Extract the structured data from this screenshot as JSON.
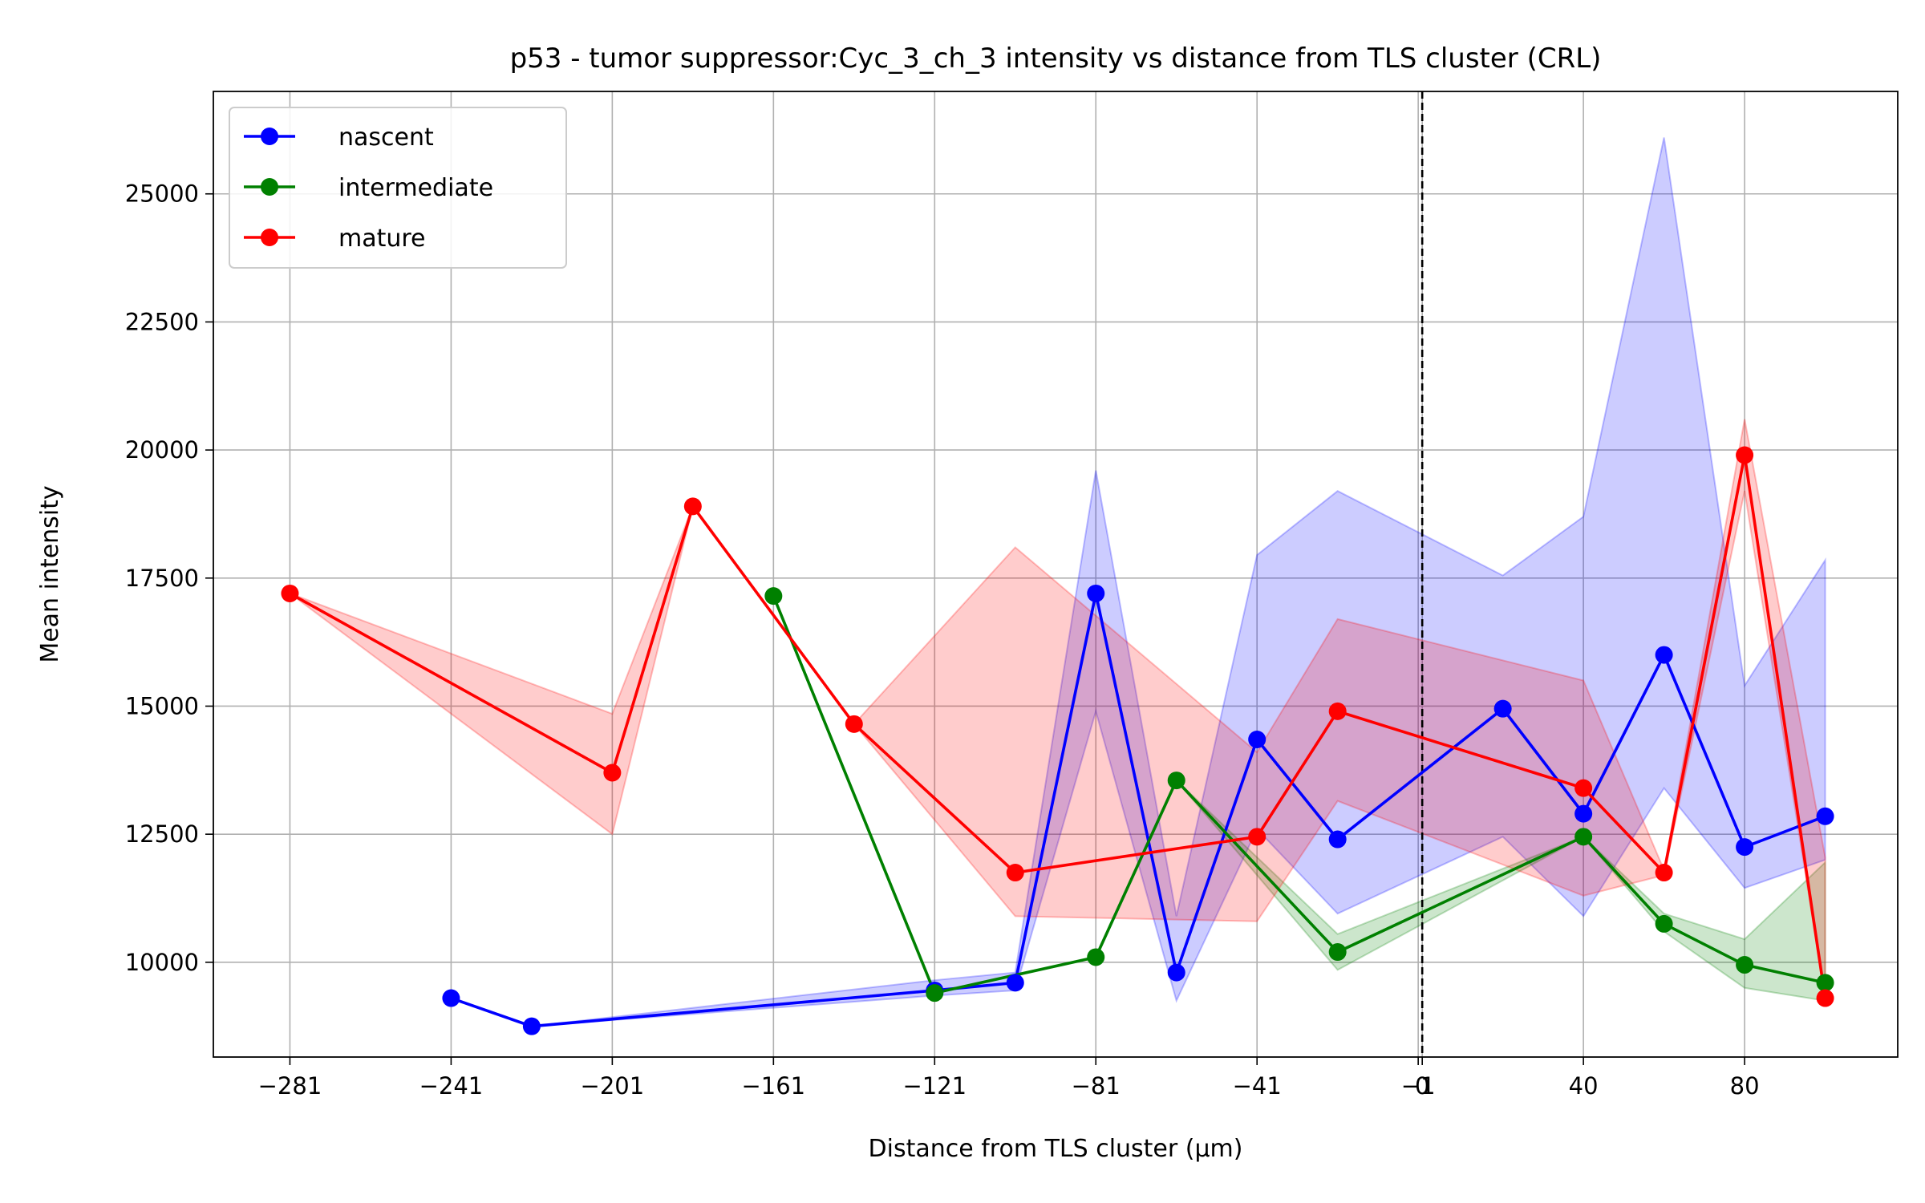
{
  "chart_data": {
    "type": "line",
    "title": "p53 - tumor suppressor:Cyc_3_ch_3 intensity vs distance from TLS cluster (CRL)",
    "xlabel": "Distance from TLS cluster (μm)",
    "ylabel": "Mean intensity",
    "xlim": [
      -300,
      118
    ],
    "ylim": [
      8150,
      27000
    ],
    "xticks": [
      {
        "value": -281,
        "label": "−281"
      },
      {
        "value": -241,
        "label": "−241"
      },
      {
        "value": -201,
        "label": "−201"
      },
      {
        "value": -161,
        "label": "−161"
      },
      {
        "value": -121,
        "label": "−121"
      },
      {
        "value": -81,
        "label": "−81"
      },
      {
        "value": -41,
        "label": "−41"
      },
      {
        "value": -1,
        "label": "−1"
      },
      {
        "value": 0,
        "label": "0"
      },
      {
        "value": 40,
        "label": "40"
      },
      {
        "value": 80,
        "label": "80"
      }
    ],
    "yticks": [
      {
        "value": 10000,
        "label": "10000"
      },
      {
        "value": 12500,
        "label": "12500"
      },
      {
        "value": 15000,
        "label": "15000"
      },
      {
        "value": 17500,
        "label": "17500"
      },
      {
        "value": 20000,
        "label": "20000"
      },
      {
        "value": 22500,
        "label": "22500"
      },
      {
        "value": 25000,
        "label": "25000"
      }
    ],
    "grid": true,
    "legend_position": "upper-left",
    "vline": {
      "x": 0,
      "style": "dashed",
      "color": "#000000"
    },
    "series": [
      {
        "name": "nascent",
        "color": "#0000ff",
        "x": [
          -241,
          -221,
          -121,
          -101,
          -81,
          -61,
          -41,
          -21,
          20,
          40,
          60,
          80,
          100
        ],
        "y": [
          9300,
          8750,
          9450,
          9600,
          17200,
          9800,
          14350,
          12400,
          14950,
          12900,
          16000,
          12250,
          12850
        ],
        "lower": [
          9300,
          8750,
          9350,
          9450,
          14900,
          9250,
          12600,
          10950,
          12450,
          10900,
          13400,
          11450,
          12000
        ],
        "upper": [
          9300,
          8750,
          9650,
          9800,
          19600,
          10900,
          17950,
          19200,
          17550,
          18700,
          26100,
          15400,
          17850
        ]
      },
      {
        "name": "intermediate",
        "color": "#008000",
        "x": [
          -161,
          -121,
          -81,
          -61,
          -21,
          40,
          60,
          80,
          100
        ],
        "y": [
          17150,
          9400,
          10100,
          13550,
          10200,
          12450,
          10750,
          9950,
          9600
        ],
        "lower": [
          17150,
          9400,
          10100,
          13550,
          9850,
          12450,
          10600,
          9500,
          9250
        ],
        "upper": [
          17150,
          9400,
          10100,
          13550,
          10550,
          12450,
          10950,
          10450,
          11950
        ]
      },
      {
        "name": "mature",
        "color": "#ff0000",
        "x": [
          -281,
          -201,
          -181,
          -141,
          -101,
          -41,
          -21,
          40,
          60,
          80,
          100
        ],
        "y": [
          17200,
          13700,
          18900,
          14650,
          11750,
          12450,
          14900,
          13400,
          11750,
          19900,
          9300
        ],
        "lower": [
          17200,
          12500,
          18900,
          14650,
          10900,
          10800,
          13150,
          11300,
          11700,
          19200,
          9300
        ],
        "upper": [
          17200,
          14850,
          18900,
          14650,
          18100,
          14100,
          16700,
          15500,
          11800,
          20600,
          12050
        ]
      }
    ]
  }
}
